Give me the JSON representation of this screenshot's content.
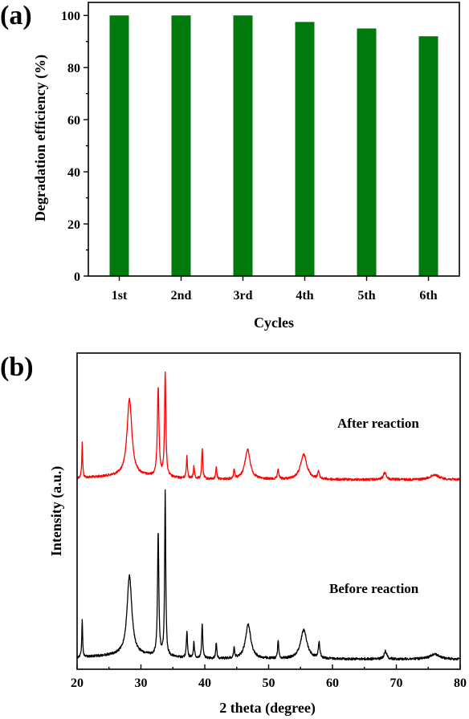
{
  "chart_data": [
    {
      "type": "bar",
      "panel_label": "(a)",
      "categories": [
        "1st",
        "2nd",
        "3rd",
        "4th",
        "5th",
        "6th"
      ],
      "values": [
        100,
        100,
        100,
        97.5,
        95,
        92
      ],
      "xlabel": "Cycles",
      "ylabel": "Degradation efficiency (%)",
      "ylim": [
        0,
        105
      ],
      "yticks": [
        0,
        20,
        40,
        60,
        80,
        100
      ],
      "colors": {
        "bar": "#007a0c"
      },
      "grid": false,
      "legend": "none"
    },
    {
      "type": "line",
      "panel_label": "(b)",
      "xlabel": "2 theta (degree)",
      "ylabel": "Intensity (a.u.)",
      "xlim": [
        20,
        80
      ],
      "xticks": [
        20,
        30,
        40,
        50,
        60,
        70,
        80
      ],
      "y_ticks_shown": false,
      "grid": false,
      "legend": "none",
      "series": [
        {
          "name": "After reaction",
          "color": "#ff0000",
          "baseline": 0.02,
          "peaks": [
            [
              20.8,
              0.14,
              0.08
            ],
            [
              28.2,
              0.31,
              0.45
            ],
            [
              32.7,
              0.36,
              0.15
            ],
            [
              33.8,
              0.42,
              0.12
            ],
            [
              37.2,
              0.09,
              0.1
            ],
            [
              38.3,
              0.05,
              0.1
            ],
            [
              39.6,
              0.12,
              0.1
            ],
            [
              41.8,
              0.05,
              0.1
            ],
            [
              44.6,
              0.04,
              0.1
            ],
            [
              46.7,
              0.12,
              0.5
            ],
            [
              51.5,
              0.04,
              0.12
            ],
            [
              55.5,
              0.1,
              0.6
            ],
            [
              57.8,
              0.03,
              0.15
            ],
            [
              68.2,
              0.03,
              0.25
            ],
            [
              76.0,
              0.02,
              0.8
            ]
          ]
        },
        {
          "name": "Before reaction",
          "color": "#000000",
          "baseline": 0.02,
          "peaks": [
            [
              20.8,
              0.14,
              0.08
            ],
            [
              28.2,
              0.3,
              0.45
            ],
            [
              32.7,
              0.47,
              0.12
            ],
            [
              33.8,
              0.62,
              0.1
            ],
            [
              37.2,
              0.1,
              0.1
            ],
            [
              38.3,
              0.06,
              0.1
            ],
            [
              39.6,
              0.13,
              0.1
            ],
            [
              41.8,
              0.06,
              0.1
            ],
            [
              44.6,
              0.04,
              0.1
            ],
            [
              46.8,
              0.13,
              0.5
            ],
            [
              51.5,
              0.07,
              0.1
            ],
            [
              55.5,
              0.11,
              0.6
            ],
            [
              57.9,
              0.06,
              0.15
            ],
            [
              68.3,
              0.03,
              0.25
            ],
            [
              76.0,
              0.02,
              0.8
            ]
          ]
        }
      ]
    }
  ]
}
